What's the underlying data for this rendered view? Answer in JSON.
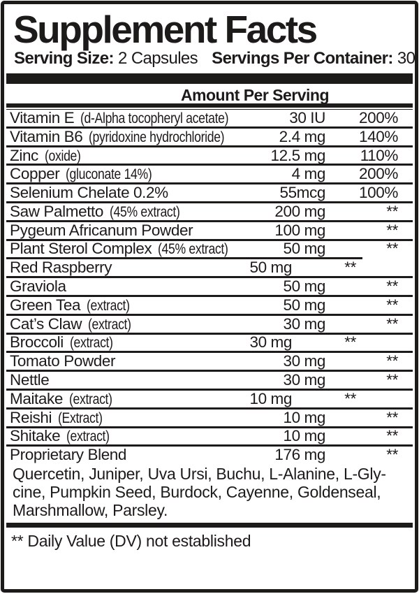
{
  "label": {
    "title": "Supplement Facts",
    "serving": {
      "size_label": "Serving Size:",
      "size_value": "2 Capsules",
      "container_label": "Servings Per Container:",
      "container_value": "30"
    },
    "amount_header": "Amount Per Serving",
    "rows": [
      {
        "name": "Vitamin E",
        "detail": "(d-Alpha tocopheryl acetate)",
        "amount": "30 IU",
        "dv": "200%"
      },
      {
        "name": "Vitamin B6",
        "detail": "(pyridoxine hydrochloride)",
        "amount": "2.4 mg",
        "dv": "140%"
      },
      {
        "name": "Zinc",
        "detail": "(oxide)",
        "amount": "12.5 mg",
        "dv": "110%"
      },
      {
        "name": "Copper",
        "detail": "(gluconate 14%)",
        "amount": "4 mg",
        "dv": "200%"
      },
      {
        "name": "Selenium Chelate 0.2%",
        "detail": "",
        "amount": "55mcg",
        "dv": "100%"
      },
      {
        "name": "Saw Palmetto",
        "detail": "(45% extract)",
        "amount": "200 mg",
        "dv": "**"
      },
      {
        "name": "Pygeum Africanum Powder",
        "detail": "",
        "amount": "100 mg",
        "dv": "**"
      },
      {
        "name": "Plant Sterol Complex",
        "detail": "(45% extract)",
        "amount": "50 mg",
        "dv": "**"
      },
      {
        "name": "Red Raspberry",
        "detail": "",
        "amount": "50 mg",
        "dv": "**",
        "shifted": true,
        "sep_short": true
      },
      {
        "name": "Graviola",
        "detail": "",
        "amount": "50 mg",
        "dv": "**"
      },
      {
        "name": "Green Tea",
        "detail": "(extract)",
        "amount": "50 mg",
        "dv": "**"
      },
      {
        "name": "Cat’s Claw",
        "detail": "(extract)",
        "amount": "30 mg",
        "dv": "**"
      },
      {
        "name": "Broccoli",
        "detail": "(extract)",
        "amount": "30 mg",
        "dv": "**",
        "shifted": true
      },
      {
        "name": "Tomato Powder",
        "detail": "",
        "amount": "30 mg",
        "dv": "**"
      },
      {
        "name": "Nettle",
        "detail": "",
        "amount": "30 mg",
        "dv": "**"
      },
      {
        "name": "Maitake",
        "detail": "(extract)",
        "amount": "10 mg",
        "dv": "**",
        "shifted": true
      },
      {
        "name": "Reishi",
        "detail": "(Extract)",
        "amount": "10 mg",
        "dv": "**"
      },
      {
        "name": "Shitake",
        "detail": "(extract)",
        "amount": "10 mg",
        "dv": "**"
      },
      {
        "name": "Proprietary Blend",
        "detail": "",
        "amount": "176 mg",
        "dv": "**"
      }
    ],
    "blend_lines": [
      "Quercetin, Juniper, Uva Ursi, Buchu, L-Alanine, L-Gly-",
      "cine, Pumpkin Seed, Burdock, Cayenne, Goldenseal,",
      "Marshmallow, Parsley."
    ],
    "footnote": "** Daily Value (DV) not established",
    "colors": {
      "ink": "#1d1b19",
      "background": "#ffffff"
    }
  }
}
